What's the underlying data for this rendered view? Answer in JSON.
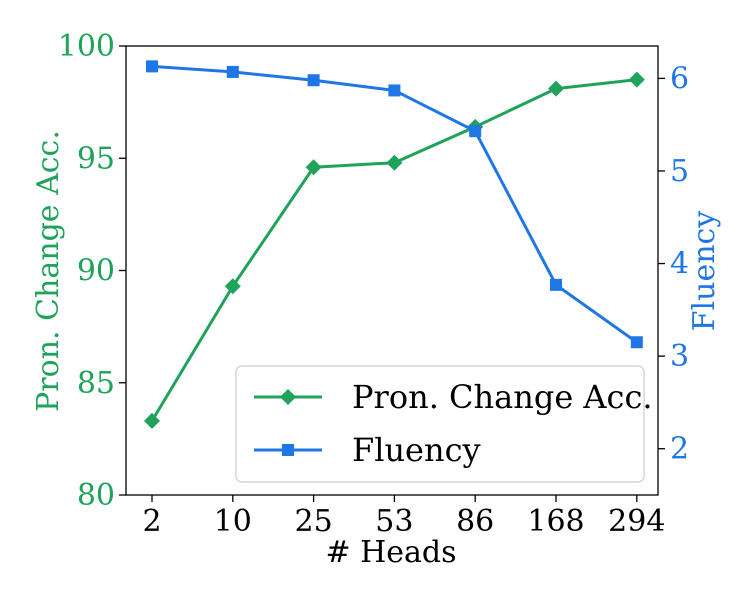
{
  "chart_data": {
    "type": "line",
    "xlabel": "# Heads",
    "categories": [
      "2",
      "10",
      "25",
      "53",
      "86",
      "168",
      "294"
    ],
    "left_axis": {
      "label": "Pron. Change Acc.",
      "ylim": [
        80,
        100
      ],
      "ticks": [
        "80",
        "85",
        "90",
        "95",
        "100"
      ],
      "color": "#1fa35a"
    },
    "right_axis": {
      "label": "Fluency",
      "ylim": [
        1.5,
        6.35
      ],
      "ticks": [
        "2",
        "3",
        "4",
        "5",
        "6"
      ],
      "color": "#1f77e6"
    },
    "series": [
      {
        "name": "Pron. Change Acc.",
        "axis": "left",
        "marker": "diamond",
        "color": "#1fa35a",
        "values": [
          83.3,
          89.3,
          94.6,
          94.8,
          96.4,
          98.1,
          98.5
        ]
      },
      {
        "name": "Fluency",
        "axis": "right",
        "marker": "square",
        "color": "#1f77e6",
        "values": [
          6.13,
          6.07,
          5.98,
          5.87,
          5.43,
          3.77,
          3.15
        ]
      }
    ],
    "legend_position": "lower-right",
    "grid": false
  }
}
